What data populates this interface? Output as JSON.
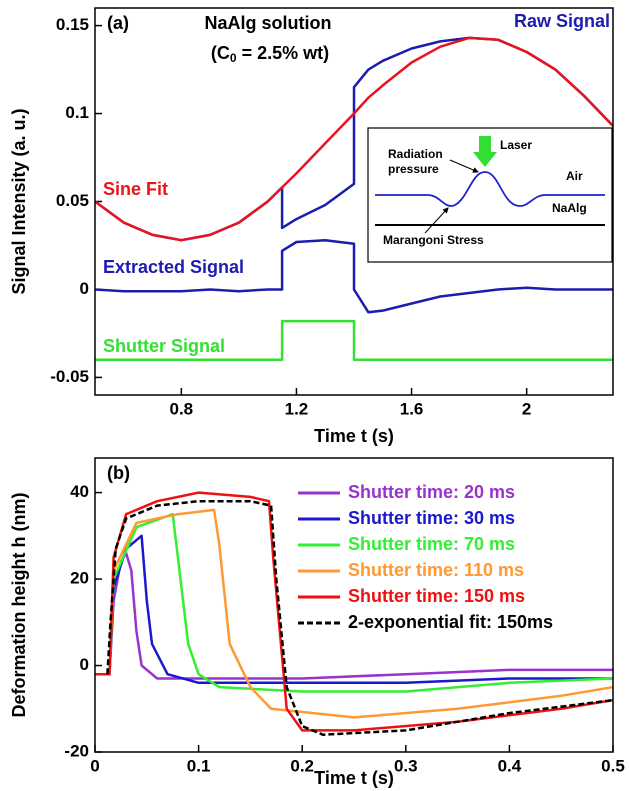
{
  "chart_data": [
    {
      "type": "line",
      "panel_label": "(a)",
      "annotation": "NaAlg solution",
      "concentration_label": [
        "(C",
        "0",
        " = 2.5% wt)"
      ],
      "xlabel": "Time t (s)",
      "ylabel": "Signal Intensity (a. u.)",
      "xlim": [
        0.5,
        2.3
      ],
      "ylim": [
        -0.06,
        0.16
      ],
      "xticks": [
        0.8,
        1.2,
        1.6,
        2
      ],
      "yticks": [
        -0.05,
        0,
        0.05,
        0.1,
        0.15
      ],
      "x": [
        0.5,
        0.6,
        0.7,
        0.8,
        0.9,
        1.0,
        1.1,
        1.15,
        1.15,
        1.2,
        1.3,
        1.4,
        1.4,
        1.45,
        1.5,
        1.6,
        1.7,
        1.8,
        1.9,
        2.0,
        2.1,
        2.2,
        2.3
      ],
      "series": [
        {
          "name": "Raw Signal",
          "color": "#1c1cb0",
          "values": [
            0.05,
            0.038,
            0.031,
            0.028,
            0.031,
            0.038,
            0.05,
            0.058,
            0.035,
            0.04,
            0.048,
            0.06,
            0.115,
            0.125,
            0.13,
            0.137,
            0.141,
            0.143,
            0.142,
            0.135,
            0.125,
            0.11,
            0.093
          ]
        },
        {
          "name": "Sine Fit",
          "color": "#e8141c",
          "values": [
            0.05,
            0.038,
            0.031,
            0.028,
            0.031,
            0.038,
            0.05,
            0.058,
            0.058,
            0.066,
            0.083,
            0.1,
            0.1,
            0.109,
            0.116,
            0.129,
            0.138,
            0.143,
            0.142,
            0.135,
            0.125,
            0.11,
            0.093
          ]
        },
        {
          "name": "Extracted Signal",
          "color": "#1c1cb0",
          "values": [
            0,
            -0.001,
            -0.001,
            -0.001,
            0,
            -0.001,
            0,
            0,
            0.022,
            0.027,
            0.028,
            0.026,
            0,
            -0.013,
            -0.012,
            -0.008,
            -0.004,
            -0.002,
            0,
            0.001,
            0,
            0,
            0
          ]
        },
        {
          "name": "Shutter Signal",
          "color": "#33e033",
          "values": [
            -0.04,
            -0.04,
            -0.04,
            -0.04,
            -0.04,
            -0.04,
            -0.04,
            -0.04,
            -0.018,
            -0.018,
            -0.018,
            -0.018,
            -0.04,
            -0.04,
            -0.04,
            -0.04,
            -0.04,
            -0.04,
            -0.04,
            -0.04,
            -0.04,
            -0.04,
            -0.04
          ]
        }
      ],
      "inset": {
        "laser": "Laser",
        "radiation_pressure": [
          "Radiation",
          "pressure"
        ],
        "air": "Air",
        "naalg": "NaAlg",
        "marangoni": "Marangoni Stress"
      }
    },
    {
      "type": "line",
      "panel_label": "(b)",
      "xlabel": "Time t (s)",
      "ylabel": "Deformation height h (nm)",
      "xlim": [
        0,
        0.5
      ],
      "ylim": [
        -20,
        48
      ],
      "xticks": [
        0,
        0.1,
        0.2,
        0.3,
        0.4,
        0.5
      ],
      "yticks": [
        -20,
        0,
        20,
        40
      ],
      "series": [
        {
          "name": "Shutter time: 20 ms",
          "color": "#9933cc",
          "x": [
            0,
            0.014,
            0.018,
            0.025,
            0.03,
            0.035,
            0.04,
            0.045,
            0.06,
            0.1,
            0.2,
            0.3,
            0.4,
            0.5
          ],
          "values": [
            -2,
            -2,
            15,
            24,
            26,
            22,
            8,
            0,
            -3,
            -3,
            -3,
            -2,
            -1,
            -1
          ]
        },
        {
          "name": "Shutter time: 30 ms",
          "color": "#1a1acc",
          "x": [
            0,
            0.014,
            0.018,
            0.03,
            0.045,
            0.05,
            0.055,
            0.07,
            0.1,
            0.2,
            0.3,
            0.4,
            0.5
          ],
          "values": [
            -2,
            -2,
            18,
            27,
            30,
            15,
            5,
            -2,
            -4,
            -4,
            -4,
            -3,
            -3
          ]
        },
        {
          "name": "Shutter time: 70 ms",
          "color": "#33ee33",
          "x": [
            0,
            0.014,
            0.018,
            0.04,
            0.075,
            0.08,
            0.09,
            0.1,
            0.12,
            0.2,
            0.3,
            0.4,
            0.5
          ],
          "values": [
            -2,
            -2,
            20,
            32,
            35,
            25,
            5,
            -2,
            -5,
            -6,
            -6,
            -4,
            -3
          ]
        },
        {
          "name": "Shutter time: 110 ms",
          "color": "#ff9933",
          "x": [
            0,
            0.014,
            0.018,
            0.04,
            0.08,
            0.115,
            0.12,
            0.13,
            0.15,
            0.17,
            0.25,
            0.35,
            0.45,
            0.5
          ],
          "values": [
            -2,
            -2,
            22,
            33,
            35,
            36,
            28,
            5,
            -5,
            -10,
            -12,
            -10,
            -7,
            -5
          ]
        },
        {
          "name": "Shutter time: 150 ms",
          "color": "#ee1111",
          "x": [
            0,
            0.014,
            0.018,
            0.03,
            0.06,
            0.1,
            0.15,
            0.168,
            0.172,
            0.185,
            0.2,
            0.25,
            0.35,
            0.45,
            0.5
          ],
          "values": [
            -2,
            -2,
            25,
            35,
            38,
            40,
            39,
            38,
            25,
            -10,
            -15,
            -15,
            -13,
            -10,
            -8
          ]
        },
        {
          "name": "2-exponential fit: 150ms",
          "color": "#000000",
          "dashed": true,
          "x": [
            0.012,
            0.015,
            0.02,
            0.03,
            0.06,
            0.1,
            0.15,
            0.17,
            0.175,
            0.185,
            0.2,
            0.22,
            0.3,
            0.4,
            0.5
          ],
          "values": [
            -2,
            10,
            27,
            34,
            37,
            38,
            38,
            37,
            20,
            -5,
            -14,
            -16,
            -15,
            -11,
            -8
          ]
        }
      ]
    }
  ]
}
